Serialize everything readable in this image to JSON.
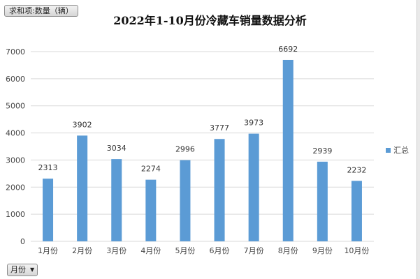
{
  "pivot": {
    "value_field_label": "求和项:数量（辆）",
    "axis_field_label": "月份"
  },
  "colors": {
    "bar": "#5b9bd5",
    "grid": "#d9d9d9",
    "text": "#444444"
  },
  "chart_data": {
    "type": "bar",
    "title": "2022年1-10月份冷藏车销量数据分析",
    "categories": [
      "1月份",
      "2月份",
      "3月份",
      "4月份",
      "5月份",
      "6月份",
      "7月份",
      "8月份",
      "9月份",
      "10月份"
    ],
    "series": [
      {
        "name": "汇总",
        "values": [
          2313,
          3902,
          3034,
          2274,
          2996,
          3777,
          3973,
          6692,
          2939,
          2232
        ]
      }
    ],
    "ylim": [
      0,
      7000
    ],
    "yticks": [
      0,
      1000,
      2000,
      3000,
      4000,
      5000,
      6000,
      7000
    ],
    "grid": true,
    "legend": "right",
    "data_labels": true
  }
}
